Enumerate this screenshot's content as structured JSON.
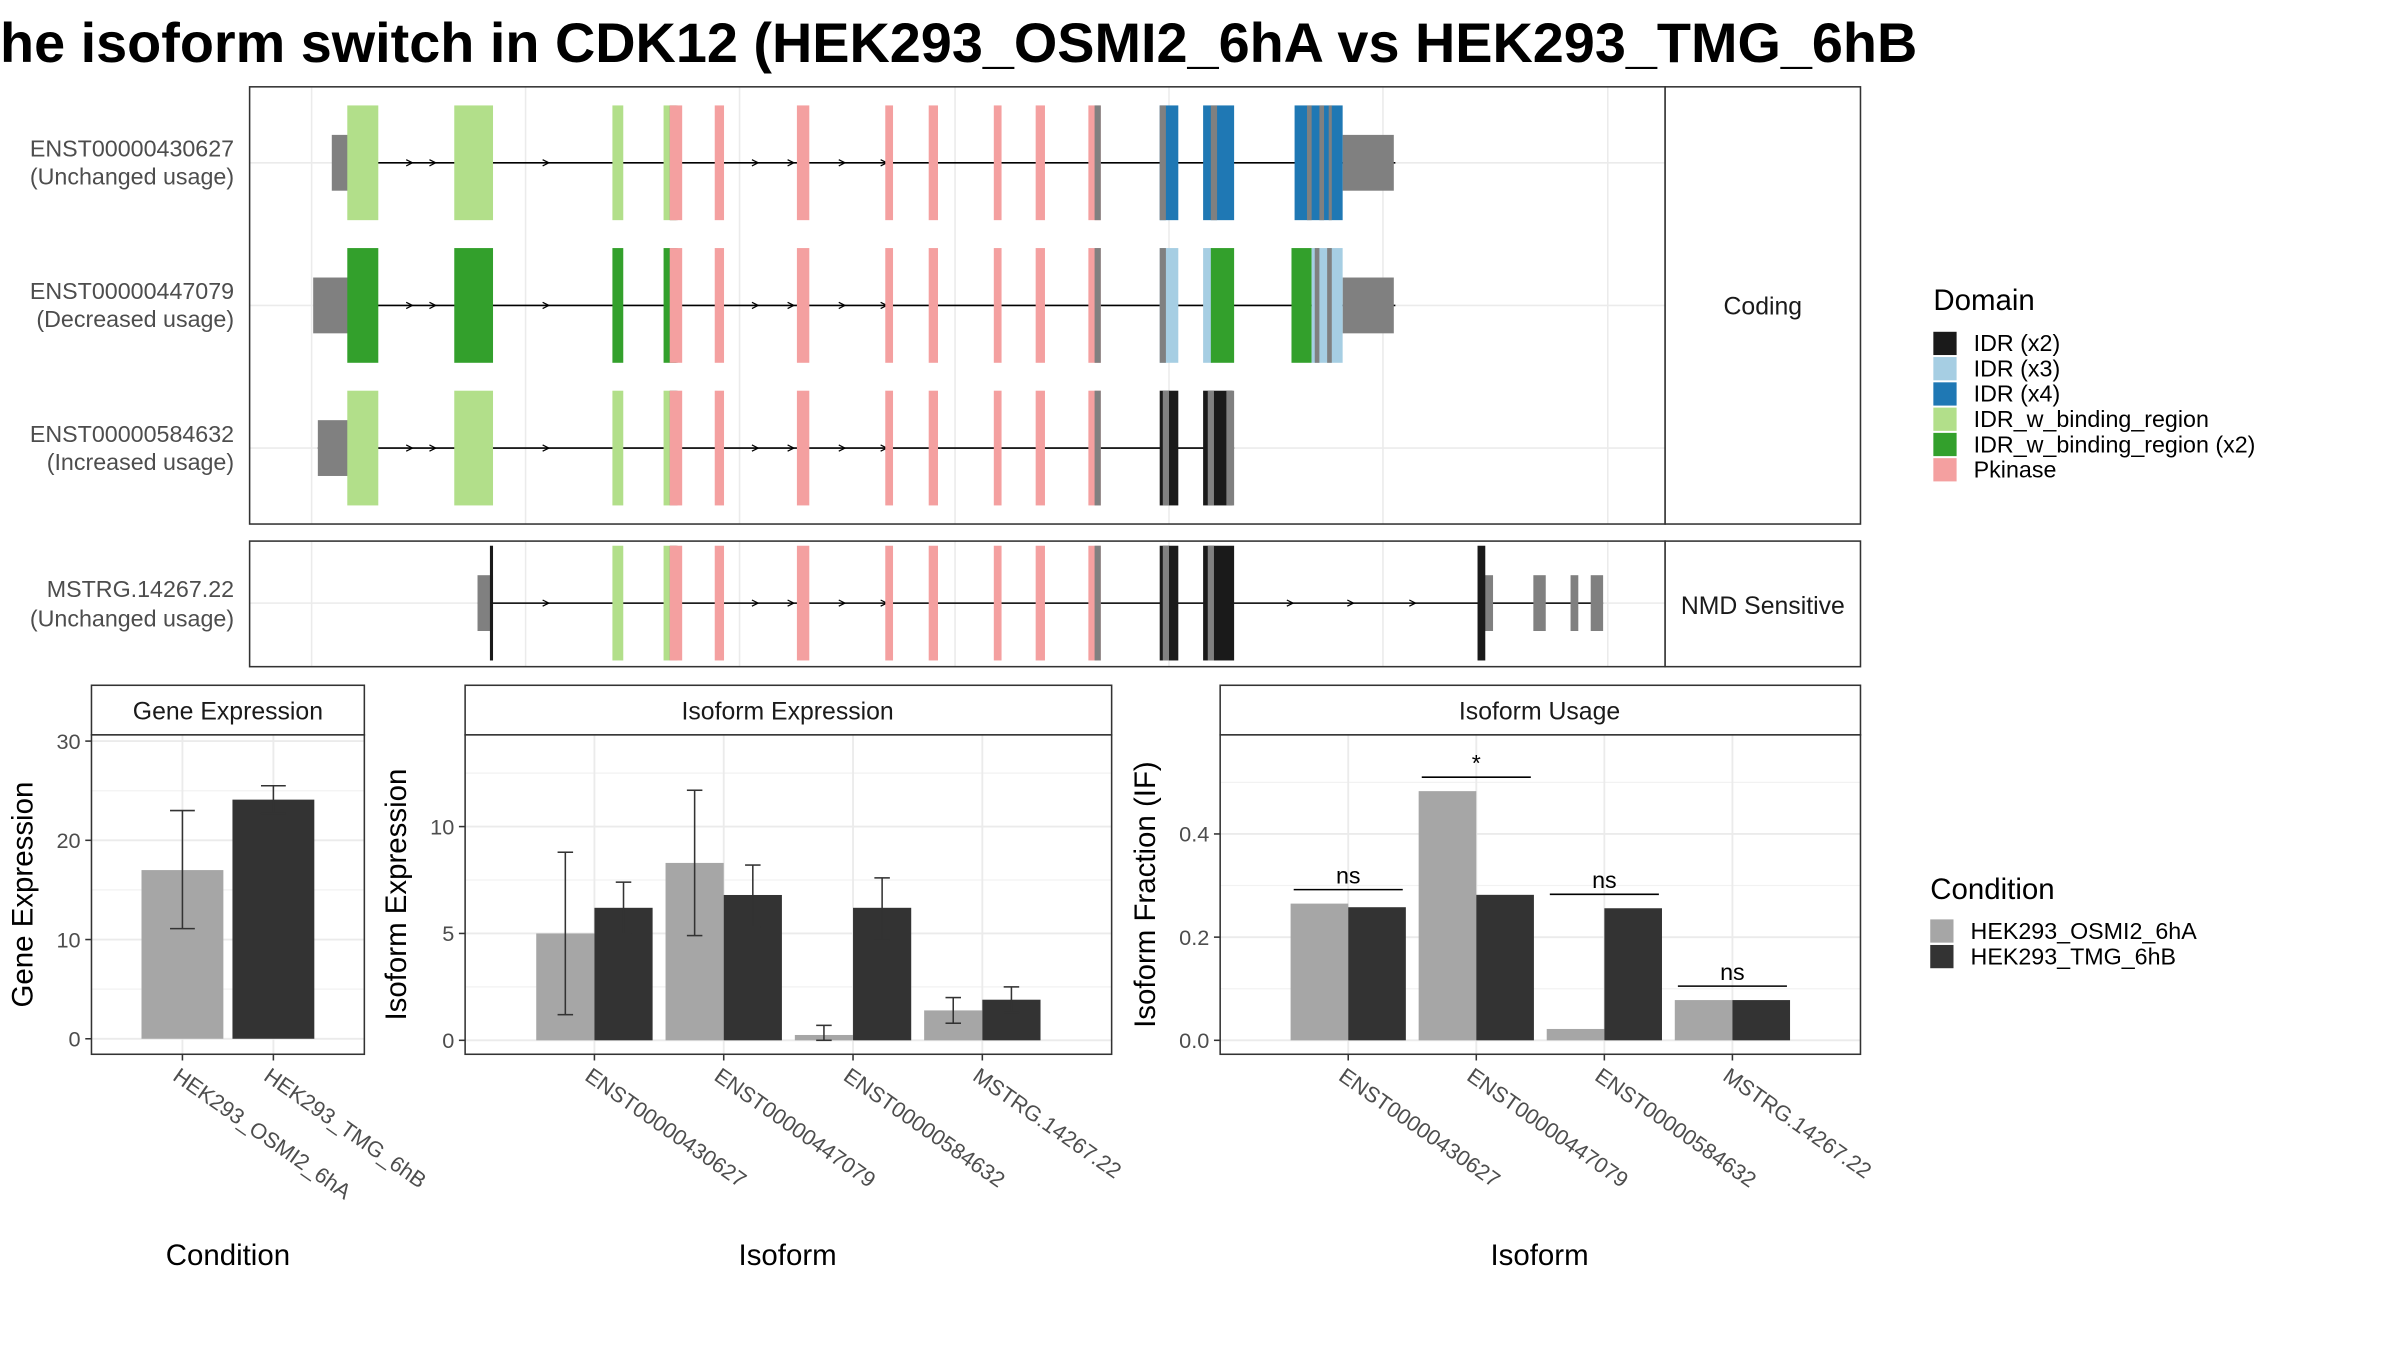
{
  "title": "he isoform switch in CDK12 (HEK293_OSMI2_6hA vs HEK293_TMG_6hB",
  "colors": {
    "IDR (x2)": "#1a1a1a",
    "IDR (x3)": "#a6cee3",
    "IDR (x4)": "#1f78b4",
    "IDR_w_binding_region": "#b2df8a",
    "IDR_w_binding_region (x2)": "#33a02c",
    "Pkinase": "#f4a0a0",
    "utr": "#808080",
    "cond_a": "#a6a6a6",
    "cond_b": "#333333"
  },
  "structure": {
    "facets": [
      "Coding",
      "NMD Sensitive"
    ],
    "transcripts": [
      {
        "id": "ENST00000430627",
        "usage": "(Unchanged usage)",
        "facet": "Coding"
      },
      {
        "id": "ENST00000447079",
        "usage": "(Decreased usage)",
        "facet": "Coding"
      },
      {
        "id": "ENST00000584632",
        "usage": "(Increased usage)",
        "facet": "Coding"
      },
      {
        "id": "MSTRG.14267.22",
        "usage": "(Unchanged usage)",
        "facet": "NMD Sensitive"
      }
    ]
  },
  "legends": {
    "domain": {
      "title": "Domain",
      "items": [
        "IDR (x2)",
        "IDR (x3)",
        "IDR (x4)",
        "IDR_w_binding_region",
        "IDR_w_binding_region (x2)",
        "Pkinase"
      ]
    },
    "condition": {
      "title": "Condition",
      "items": [
        "HEK293_OSMI2_6hA",
        "HEK293_TMG_6hB"
      ]
    }
  },
  "chart_data": [
    {
      "type": "bar",
      "title": "Gene Expression",
      "xlabel": "Condition",
      "ylabel": "Gene Expression",
      "categories": [
        "HEK293_OSMI2_6hA",
        "HEK293_TMG_6hB"
      ],
      "values": [
        17.0,
        24.1
      ],
      "error_low": [
        11.1,
        22.7
      ],
      "error_high": [
        23.0,
        25.5
      ],
      "ylim": [
        0,
        30
      ],
      "yticks": [
        0,
        10,
        20,
        30
      ],
      "grid": true
    },
    {
      "type": "bar",
      "title": "Isoform Expression",
      "xlabel": "Isoform",
      "ylabel": "Isoform Expression",
      "categories": [
        "ENST00000430627",
        "ENST00000447079",
        "ENST00000584632",
        "MSTRG.14267.22"
      ],
      "series": [
        {
          "name": "HEK293_OSMI2_6hA",
          "values": [
            5.0,
            8.3,
            0.25,
            1.4
          ],
          "error_low": [
            1.2,
            4.9,
            0.0,
            0.8
          ],
          "error_high": [
            8.8,
            11.7,
            0.7,
            2.0
          ]
        },
        {
          "name": "HEK293_TMG_6hB",
          "values": [
            6.2,
            6.8,
            6.2,
            1.9
          ],
          "error_low": [
            5.0,
            5.3,
            4.7,
            1.3
          ],
          "error_high": [
            7.4,
            8.2,
            7.6,
            2.5
          ]
        }
      ],
      "ylim": [
        0,
        14
      ],
      "yticks": [
        0,
        5,
        10
      ],
      "grid": true
    },
    {
      "type": "bar",
      "title": "Isoform Usage",
      "xlabel": "Isoform",
      "ylabel": "Isoform Fraction (IF)",
      "categories": [
        "ENST00000430627",
        "ENST00000447079",
        "ENST00000584632",
        "MSTRG.14267.22"
      ],
      "series": [
        {
          "name": "HEK293_OSMI2_6hA",
          "values": [
            0.265,
            0.483,
            0.022,
            0.078
          ]
        },
        {
          "name": "HEK293_TMG_6hB",
          "values": [
            0.258,
            0.282,
            0.256,
            0.078
          ]
        }
      ],
      "significance": [
        "ns",
        "*",
        "ns",
        "ns"
      ],
      "ylim": [
        0,
        0.58
      ],
      "yticks": [
        0.0,
        0.2,
        0.4
      ],
      "grid": true
    }
  ]
}
